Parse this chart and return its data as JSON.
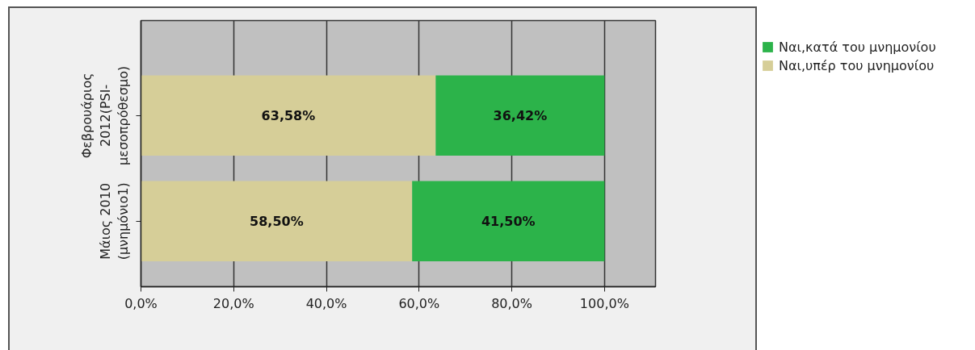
{
  "chart_data": {
    "type": "bar",
    "orientation": "horizontal",
    "stacked": true,
    "categories": [
      "Φεβρουάριος 2012(PSI-μεσοπρόθεσμο)",
      "Μάιος 2010 (μνημόνιο1)"
    ],
    "series": [
      {
        "name": "Ναι,υπέρ του μνημονίου",
        "color": "#d6ce98",
        "values": [
          63.58,
          58.5
        ],
        "value_labels": [
          "63,58%",
          "58,50%"
        ]
      },
      {
        "name": "Ναι,κατά του μνημονίου",
        "color": "#2cb34a",
        "values": [
          36.42,
          41.5
        ],
        "value_labels": [
          "36,42%",
          "41,50%"
        ]
      }
    ],
    "xlim": [
      0,
      111
    ],
    "xticks": [
      {
        "value": 0,
        "label": "0,0%"
      },
      {
        "value": 20,
        "label": "20,0%"
      },
      {
        "value": 40,
        "label": "40,0%"
      },
      {
        "value": 60,
        "label": "60,0%"
      },
      {
        "value": 80,
        "label": "80,0%"
      },
      {
        "value": 100,
        "label": "100,0%"
      }
    ],
    "grid": "x",
    "legend": "top right"
  }
}
